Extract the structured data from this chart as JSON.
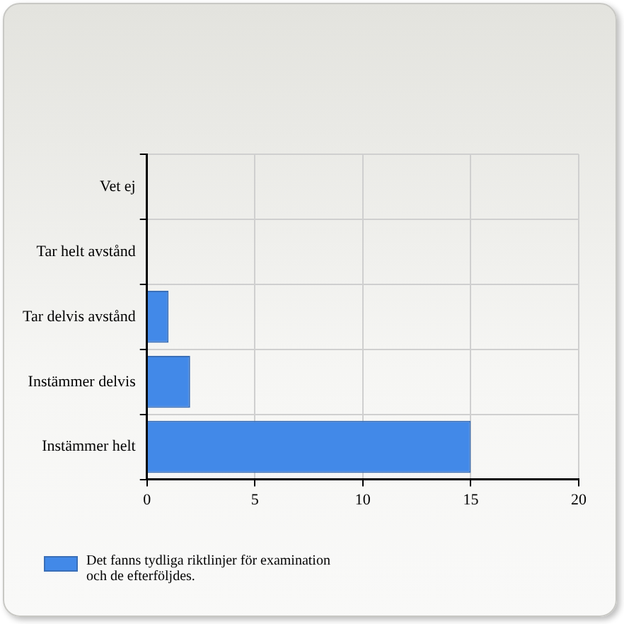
{
  "chart_data": {
    "type": "bar",
    "orientation": "horizontal",
    "categories": [
      "Vet ej",
      "Tar helt avstånd",
      "Tar delvis avstånd",
      "Instämmer delvis",
      "Instämmer helt"
    ],
    "series": [
      {
        "name": "Det fanns tydliga riktlinjer för examination och de efterföljdes.",
        "color": "#4289e8",
        "values": [
          0,
          0,
          1,
          2,
          15
        ]
      }
    ],
    "xlim": [
      0,
      20
    ],
    "xticks": [
      0,
      5,
      10,
      15,
      20
    ],
    "grid": true,
    "legend": "bottom left"
  }
}
